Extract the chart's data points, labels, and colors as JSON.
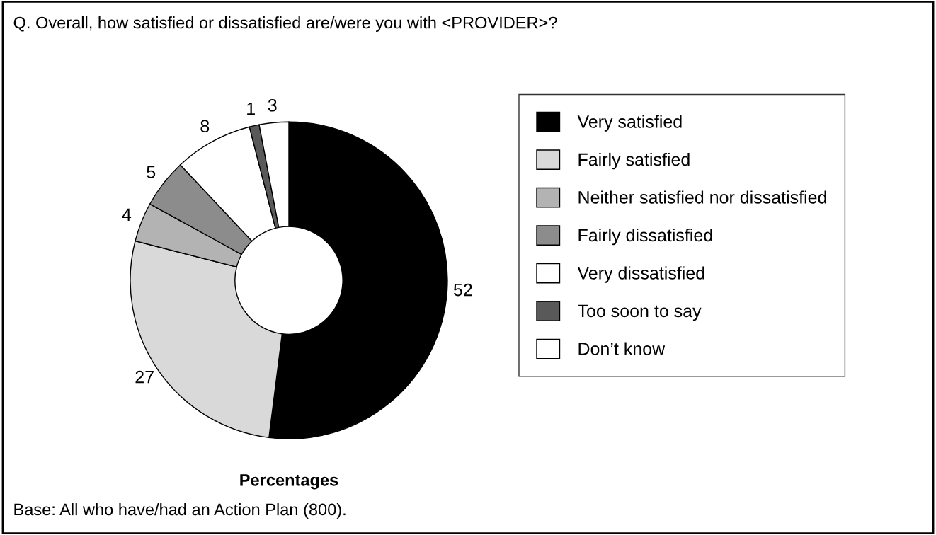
{
  "chart_data": {
    "type": "donut",
    "title": "Q. Overall, how satisfied or dissatisfied are/were you with <PROVIDER>?",
    "categories": [
      "Very satisfied",
      "Fairly satisfied",
      "Neither satisfied nor dissatisfied",
      "Fairly dissatisfied",
      "Very dissatisfied",
      "Too soon to say",
      "Don’t know"
    ],
    "values": [
      52,
      27,
      4,
      5,
      8,
      1,
      3
    ],
    "colors": [
      "#000000",
      "#d9d9d9",
      "#b3b3b3",
      "#8c8c8c",
      "#ffffff",
      "#595959",
      "#ffffff"
    ],
    "data_labels": true,
    "legend": "right",
    "xlabel": "Percentages",
    "annotations": [
      "Base: All who have/had an Action Plan (800)."
    ]
  }
}
